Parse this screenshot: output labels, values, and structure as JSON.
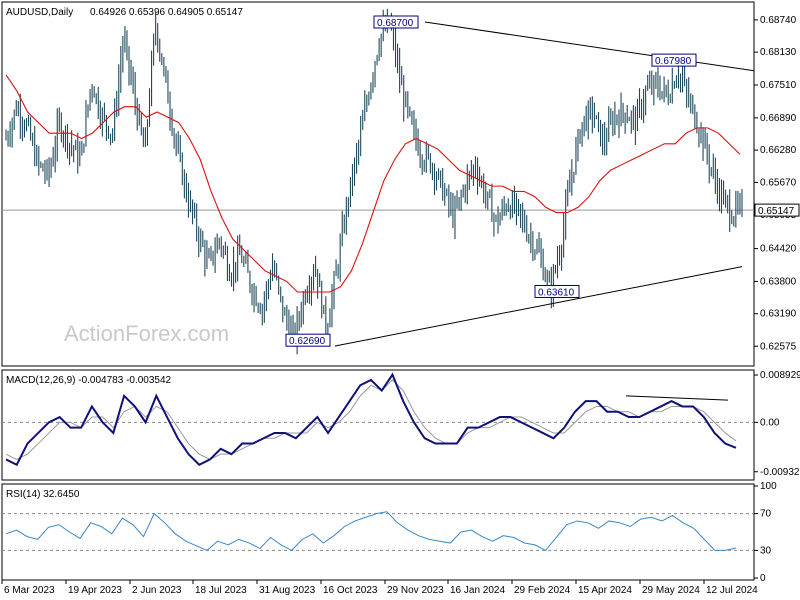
{
  "chart_data": [
    {
      "type": "candlestick",
      "title": "AUDUSD,Daily",
      "ohlc_header": "0.64926 0.65396 0.64905 0.65147",
      "current_price": "0.65147",
      "ylim": [
        0.6224,
        0.6904
      ],
      "y_ticks": [
        "0.68740",
        "0.68130",
        "0.67510",
        "0.66890",
        "0.66280",
        "0.65670",
        "0.65055",
        "0.64420",
        "0.63800",
        "0.63190",
        "0.62575"
      ],
      "x_ticks": [
        "6 Mar 2023",
        "19 Apr 2023",
        "2 Jun 2023",
        "18 Jul 2023",
        "31 Aug 2023",
        "16 Oct 2023",
        "29 Nov 2023",
        "16 Jan 2024",
        "29 Feb 2024",
        "15 Apr 2024",
        "29 May 2024",
        "12 Jul 2024"
      ],
      "price_path": [
        0.665,
        0.671,
        0.667,
        0.66,
        0.658,
        0.668,
        0.664,
        0.661,
        0.676,
        0.669,
        0.666,
        0.684,
        0.673,
        0.662,
        0.687,
        0.675,
        0.663,
        0.654,
        0.647,
        0.641,
        0.646,
        0.64,
        0.643,
        0.637,
        0.633,
        0.641,
        0.632,
        0.627,
        0.636,
        0.641,
        0.629,
        0.64,
        0.653,
        0.663,
        0.674,
        0.684,
        0.687,
        0.675,
        0.667,
        0.662,
        0.66,
        0.655,
        0.65,
        0.656,
        0.66,
        0.654,
        0.649,
        0.653,
        0.651,
        0.647,
        0.643,
        0.636,
        0.645,
        0.658,
        0.668,
        0.67,
        0.664,
        0.669,
        0.67,
        0.668,
        0.674,
        0.675,
        0.673,
        0.678,
        0.672,
        0.667,
        0.66,
        0.654,
        0.651,
        0.6515
      ],
      "ma_path": [
        0.677,
        0.674,
        0.67,
        0.668,
        0.666,
        0.666,
        0.666,
        0.665,
        0.666,
        0.668,
        0.67,
        0.671,
        0.671,
        0.669,
        0.67,
        0.669,
        0.668,
        0.665,
        0.661,
        0.655,
        0.65,
        0.646,
        0.644,
        0.642,
        0.64,
        0.639,
        0.638,
        0.636,
        0.636,
        0.636,
        0.636,
        0.637,
        0.64,
        0.645,
        0.651,
        0.657,
        0.661,
        0.664,
        0.665,
        0.664,
        0.663,
        0.661,
        0.659,
        0.658,
        0.657,
        0.656,
        0.656,
        0.655,
        0.655,
        0.654,
        0.652,
        0.651,
        0.651,
        0.652,
        0.654,
        0.657,
        0.659,
        0.66,
        0.661,
        0.662,
        0.663,
        0.664,
        0.664,
        0.666,
        0.667,
        0.667,
        0.666,
        0.664,
        0.662
      ],
      "trendlines": [
        {
          "from": [
            0.687,
            "29 Nov 2023"
          ],
          "to": [
            0.6798,
            "end"
          ]
        },
        {
          "from": [
            0.6269,
            "16 Oct 2023"
          ],
          "to": [
            0.6361,
            "15 Apr 2024"
          ]
        }
      ],
      "price_labels": [
        "0.68700",
        "0.67980",
        "0.62690",
        "0.63610"
      ],
      "watermark": "ActionForex.com"
    },
    {
      "type": "line",
      "title": "MACD(12,26,9) -0.004783 -0.003542",
      "ylim": [
        -0.0105,
        0.0095
      ],
      "y_ticks": [
        "0.008929",
        "0.00",
        "-0.009321"
      ],
      "series": [
        {
          "values": [
            -0.007,
            -0.008,
            -0.004,
            -0.002,
            0.0,
            0.001,
            -0.001,
            -0.001,
            0.003,
            0.0,
            -0.002,
            0.005,
            0.003,
            0.0,
            0.005,
            0.001,
            -0.003,
            -0.006,
            -0.008,
            -0.007,
            -0.005,
            -0.006,
            -0.004,
            -0.004,
            -0.003,
            -0.002,
            -0.002,
            -0.003,
            -0.001,
            0.001,
            -0.002,
            0.001,
            0.004,
            0.007,
            0.008,
            0.006,
            0.009,
            0.004,
            0.0,
            -0.003,
            -0.004,
            -0.004,
            -0.004,
            -0.001,
            -0.001,
            0.0,
            0.001,
            0.001,
            0.0,
            -0.001,
            -0.002,
            -0.003,
            -0.001,
            0.002,
            0.004,
            0.004,
            0.002,
            0.002,
            0.001,
            0.001,
            0.002,
            0.003,
            0.004,
            0.003,
            0.003,
            0.001,
            -0.002,
            -0.004,
            -0.0048
          ]
        },
        {
          "values": [
            -0.006,
            -0.007,
            -0.006,
            -0.004,
            -0.002,
            0.0,
            0.0,
            -0.001,
            0.001,
            0.001,
            -0.001,
            0.002,
            0.003,
            0.001,
            0.003,
            0.002,
            -0.001,
            -0.004,
            -0.006,
            -0.007,
            -0.006,
            -0.006,
            -0.005,
            -0.004,
            -0.003,
            -0.003,
            -0.002,
            -0.002,
            -0.002,
            0.0,
            -0.001,
            0.0,
            0.002,
            0.005,
            0.007,
            0.006,
            0.008,
            0.006,
            0.002,
            -0.001,
            -0.003,
            -0.004,
            -0.004,
            -0.002,
            -0.001,
            -0.001,
            0.0,
            0.001,
            0.001,
            0.0,
            -0.001,
            -0.002,
            -0.002,
            0.0,
            0.002,
            0.003,
            0.003,
            0.002,
            0.002,
            0.001,
            0.002,
            0.002,
            0.003,
            0.003,
            0.003,
            0.002,
            0.0,
            -0.002,
            -0.0035
          ]
        }
      ],
      "divergence_line": [
        [
          0.005,
          "29 May 2024"
        ],
        [
          0.0042,
          "end"
        ]
      ]
    },
    {
      "type": "line",
      "title": "RSI(14) 32.6450",
      "ylim": [
        0,
        100
      ],
      "y_ticks": [
        "100",
        "70",
        "30",
        "0"
      ],
      "series": [
        {
          "values": [
            48,
            52,
            45,
            42,
            55,
            58,
            50,
            43,
            60,
            56,
            48,
            65,
            58,
            45,
            70,
            60,
            48,
            40,
            35,
            30,
            40,
            36,
            42,
            38,
            32,
            44,
            36,
            30,
            42,
            48,
            38,
            46,
            56,
            62,
            66,
            70,
            72,
            60,
            52,
            46,
            42,
            40,
            38,
            50,
            52,
            45,
            40,
            46,
            44,
            38,
            36,
            30,
            44,
            58,
            62,
            60,
            54,
            62,
            60,
            56,
            64,
            66,
            62,
            68,
            60,
            54,
            42,
            30,
            30,
            32.6
          ]
        }
      ]
    }
  ]
}
